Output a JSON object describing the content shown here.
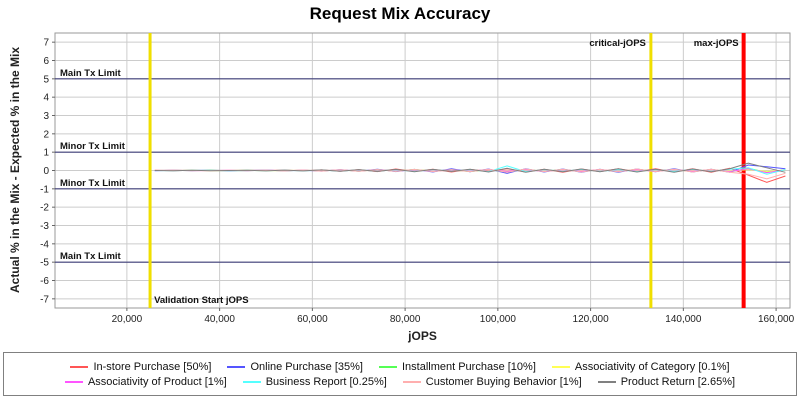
{
  "chart_data": {
    "type": "line",
    "title": "Request Mix Accuracy",
    "xlabel": "jOPS",
    "ylabel": "Actual % in the Mix - Expected % in the Mix",
    "xlim": [
      4500,
      163000
    ],
    "ylim": [
      -7.5,
      7.5
    ],
    "grid": true,
    "legend_position": "bottom",
    "xticks": [
      {
        "v": 20000,
        "label": "20,000"
      },
      {
        "v": 40000,
        "label": "40,000"
      },
      {
        "v": 60000,
        "label": "60,000"
      },
      {
        "v": 80000,
        "label": "80,000"
      },
      {
        "v": 100000,
        "label": "100,000"
      },
      {
        "v": 120000,
        "label": "120,000"
      },
      {
        "v": 140000,
        "label": "140,000"
      },
      {
        "v": 160000,
        "label": "160,000"
      }
    ],
    "yticks": [
      7,
      6,
      5,
      4,
      3,
      2,
      1,
      0,
      -1,
      -2,
      -3,
      -4,
      -5,
      -6,
      -7
    ],
    "h_markers": [
      {
        "y": 5,
        "label": "Main Tx Limit",
        "color": "#3f3f7a"
      },
      {
        "y": 1,
        "label": "Minor Tx Limit",
        "color": "#3f3f7a"
      },
      {
        "y": -1,
        "label": "Minor Tx Limit",
        "color": "#3f3f7a"
      },
      {
        "y": -5,
        "label": "Main Tx Limit",
        "color": "#3f3f7a"
      }
    ],
    "v_markers": [
      {
        "x": 25000,
        "label": "Validation Start jOPS",
        "color": "#f0df00",
        "width": 3,
        "label_pos": "bottom"
      },
      {
        "x": 133000,
        "label": "critical-jOPS",
        "color": "#f0df00",
        "width": 3,
        "label_pos": "top"
      },
      {
        "x": 153000,
        "label": "max-jOPS",
        "color": "#ff0000",
        "width": 4,
        "label_pos": "top"
      }
    ],
    "x": [
      26000,
      30000,
      34000,
      38000,
      42000,
      46000,
      50000,
      54000,
      58000,
      62000,
      66000,
      70000,
      74000,
      78000,
      82000,
      86000,
      90000,
      94000,
      98000,
      102000,
      106000,
      110000,
      114000,
      118000,
      122000,
      126000,
      130000,
      134000,
      138000,
      142000,
      146000,
      150000,
      154000,
      158000,
      162000
    ],
    "series": [
      {
        "label": "In-store Purchase [50%]",
        "color": "#FF5555",
        "values": [
          0.01,
          -0.01,
          0.01,
          0,
          -0.01,
          0.01,
          0,
          0.02,
          -0.02,
          0.03,
          -0.04,
          0.05,
          -0.06,
          0.08,
          -0.05,
          0.07,
          -0.08,
          0.06,
          -0.05,
          0.1,
          -0.08,
          0.07,
          -0.09,
          0.08,
          -0.06,
          0.09,
          -0.07,
          0.1,
          -0.08,
          0.09,
          -0.1,
          0.12,
          -0.25,
          -0.65,
          -0.3
        ]
      },
      {
        "label": "Online Purchase [35%]",
        "color": "#5555FF",
        "values": [
          -0.01,
          0.01,
          0,
          0.01,
          -0.01,
          0,
          0.02,
          -0.02,
          0.01,
          -0.03,
          0.05,
          -0.04,
          0.07,
          -0.06,
          0.06,
          -0.08,
          0.09,
          -0.07,
          0.08,
          -0.15,
          0.1,
          -0.08,
          0.08,
          -0.09,
          0.07,
          -0.1,
          0.08,
          -0.07,
          0.09,
          -0.08,
          0.07,
          -0.09,
          0.3,
          0.2,
          0.1
        ]
      },
      {
        "label": "Installment Purchase [10%]",
        "color": "#55FF55",
        "values": [
          0,
          0.01,
          -0.01,
          0.01,
          0,
          -0.01,
          0.01,
          -0.02,
          0.02,
          -0.02,
          0.03,
          -0.04,
          0.05,
          -0.04,
          0.06,
          -0.05,
          0.04,
          -0.06,
          0.05,
          -0.08,
          0.07,
          -0.05,
          0.06,
          -0.07,
          0.05,
          -0.06,
          0.07,
          -0.05,
          0.06,
          -0.07,
          0.06,
          -0.08,
          0.12,
          -0.1,
          0.05
        ]
      },
      {
        "label": "Associativity of Category [0.1%]",
        "color": "#FFFF55",
        "values": [
          0,
          0,
          0.01,
          -0.01,
          0,
          0.01,
          -0.01,
          0,
          0.01,
          -0.01,
          0.02,
          -0.02,
          0.02,
          -0.02,
          0.03,
          -0.02,
          0.02,
          -0.03,
          0.03,
          -0.02,
          0.03,
          -0.03,
          0.02,
          -0.02,
          0.03,
          -0.03,
          0.02,
          -0.03,
          0.03,
          -0.02,
          0.03,
          -0.03,
          0.05,
          -0.05,
          0.02
        ]
      },
      {
        "label": "Associativity of Product [1%]",
        "color": "#FF55FF",
        "values": [
          0,
          0.01,
          -0.01,
          0,
          0.01,
          -0.01,
          0.01,
          -0.01,
          0.02,
          -0.02,
          0.03,
          -0.03,
          0.04,
          -0.03,
          0.04,
          -0.04,
          0.03,
          -0.04,
          0.05,
          -0.04,
          0.05,
          -0.05,
          0.04,
          -0.04,
          0.05,
          -0.05,
          0.04,
          -0.05,
          0.05,
          -0.04,
          0.05,
          -0.06,
          0.1,
          -0.12,
          0.04
        ]
      },
      {
        "label": "Business Report [0.25%]",
        "color": "#55FFFF",
        "values": [
          0,
          -0.01,
          0.01,
          0,
          -0.01,
          0.01,
          -0.01,
          0.01,
          -0.02,
          0.02,
          -0.03,
          0.03,
          -0.04,
          0.04,
          -0.05,
          0.05,
          -0.04,
          0.05,
          -0.06,
          0.25,
          -0.06,
          0.05,
          -0.05,
          0.06,
          -0.05,
          0.05,
          -0.06,
          0.05,
          -0.05,
          0.06,
          -0.05,
          0.07,
          0.15,
          -0.2,
          0.05
        ]
      },
      {
        "label": "Customer Buying Behavior [1%]",
        "color": "#FFAFAF",
        "values": [
          0,
          0.01,
          0,
          -0.01,
          0.01,
          0,
          0.01,
          -0.02,
          0.02,
          -0.03,
          0.04,
          -0.04,
          0.05,
          -0.05,
          0.06,
          -0.06,
          0.05,
          -0.06,
          0.07,
          -0.1,
          0.08,
          -0.06,
          0.07,
          -0.08,
          0.06,
          -0.07,
          0.08,
          -0.06,
          0.07,
          -0.08,
          0.07,
          -0.09,
          -0.2,
          -0.45,
          -0.15
        ]
      },
      {
        "label": "Product Return [2.65%]",
        "color": "#808080",
        "values": [
          0,
          -0.01,
          0.01,
          -0.01,
          0,
          0.01,
          -0.02,
          0.02,
          -0.02,
          0.03,
          -0.04,
          0.05,
          -0.05,
          0.06,
          -0.07,
          0.06,
          -0.05,
          0.07,
          -0.08,
          0.12,
          -0.09,
          0.07,
          -0.07,
          0.08,
          -0.07,
          0.09,
          -0.08,
          0.07,
          -0.09,
          0.08,
          -0.07,
          0.1,
          0.4,
          0.15,
          -0.1
        ]
      }
    ],
    "colors": {
      "grid": "#cccccc",
      "plot_border": "#9a9a9a",
      "tick": "#666666",
      "limit_line": "#3f3f7a",
      "validation_line": "#f0df00",
      "max_jops_line": "#ff0000"
    }
  },
  "legend": {
    "rows": [
      [
        0,
        1,
        2,
        3
      ],
      [
        4,
        5,
        6,
        7
      ]
    ]
  }
}
